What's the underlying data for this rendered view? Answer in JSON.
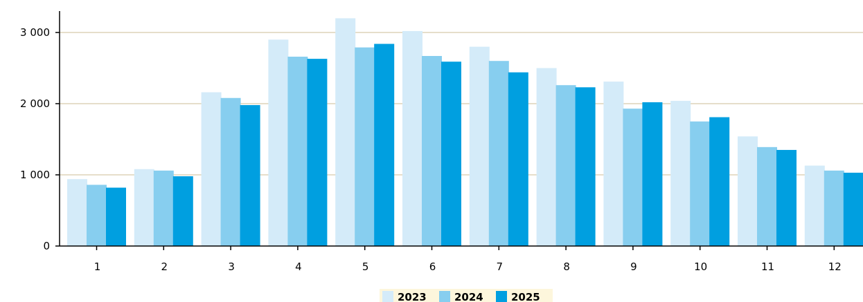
{
  "chart_data": {
    "type": "bar",
    "categories": [
      "1",
      "2",
      "3",
      "4",
      "5",
      "6",
      "7",
      "8",
      "9",
      "10",
      "11",
      "12"
    ],
    "series": [
      {
        "name": "2023",
        "color": "#d4ebf9",
        "values": [
          940,
          1080,
          2160,
          2900,
          3200,
          3020,
          2800,
          2500,
          2310,
          2040,
          1540,
          1130
        ]
      },
      {
        "name": "2024",
        "color": "#87ceef",
        "values": [
          860,
          1060,
          2080,
          2660,
          2790,
          2670,
          2600,
          2260,
          1930,
          1750,
          1390,
          1060
        ]
      },
      {
        "name": "2025",
        "color": "#009fe0",
        "values": [
          820,
          980,
          1980,
          2630,
          2840,
          2590,
          2440,
          2230,
          2020,
          1810,
          1350,
          1030
        ]
      }
    ],
    "yticks": [
      {
        "value": 0,
        "label": "0"
      },
      {
        "value": 1000,
        "label": "1 000"
      },
      {
        "value": 2000,
        "label": "2 000"
      },
      {
        "value": 3000,
        "label": "3 000"
      }
    ],
    "ylim": [
      0,
      3300
    ],
    "gridlines": true,
    "grid_color": "#ddd4b8",
    "legend_position": "bottom-center",
    "legend_bg": "#fdf6dc",
    "title": "",
    "xlabel": "",
    "ylabel": ""
  }
}
